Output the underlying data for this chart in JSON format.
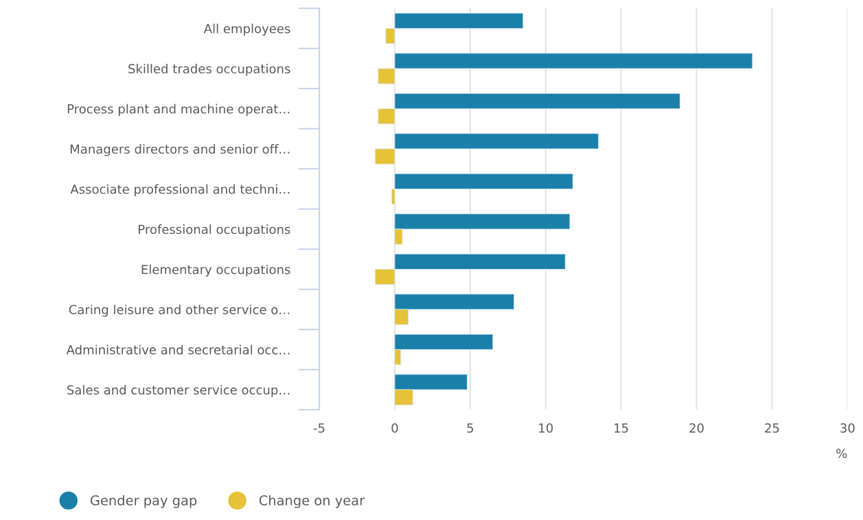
{
  "chart_data": {
    "type": "bar",
    "orientation": "horizontal",
    "categories": [
      "All employees",
      "Skilled trades occupations",
      "Process plant and machine operat…",
      "Managers directors and senior off…",
      "Associate professional and techni…",
      "Professional occupations",
      "Elementary occupations",
      "Caring leisure and other service o…",
      "Administrative and secretarial occ…",
      "Sales and customer service occup…"
    ],
    "series": [
      {
        "name": "Gender pay gap",
        "color": "#1a80aa",
        "values": [
          8.5,
          23.7,
          18.9,
          13.5,
          11.8,
          11.6,
          11.3,
          7.9,
          6.5,
          4.8
        ]
      },
      {
        "name": "Change on year",
        "color": "#e5c237",
        "values": [
          -0.6,
          -1.1,
          -1.1,
          -1.3,
          -0.2,
          0.5,
          -1.3,
          0.9,
          0.4,
          1.2
        ]
      }
    ],
    "xlabel": "%",
    "xlim": [
      -5,
      30
    ],
    "xticks": [
      -5,
      0,
      5,
      10,
      15,
      20,
      25,
      30
    ],
    "grid": "x",
    "legend": "bottom left"
  }
}
